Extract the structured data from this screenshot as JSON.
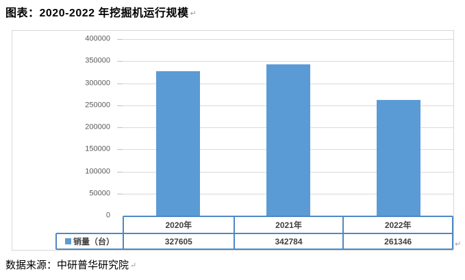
{
  "document": {
    "title": "图表：2020-2022 年挖掘机运行规模",
    "source_note": "数据来源：中研普华研究院",
    "paragraph_mark": "↵"
  },
  "chart_data": {
    "type": "bar",
    "title": "图表：2020-2022 年挖掘机运行规模",
    "categories": [
      "2020年",
      "2021年",
      "2022年"
    ],
    "series": [
      {
        "name": "销量（台）",
        "values": [
          327605,
          342784,
          261346
        ]
      }
    ],
    "xlabel": "",
    "ylabel": "",
    "ylim": [
      0,
      400000
    ],
    "yticks": [
      0,
      50000,
      100000,
      150000,
      200000,
      250000,
      300000,
      350000,
      400000
    ],
    "grid": true,
    "legend_position": "data-table-left",
    "data_table_shown": true,
    "bar_color": "#5b9bd5",
    "gridline_color": "#d9d9d9",
    "axis_label_color": "#595959",
    "table_border_color": "#4e87c5",
    "frame_border_color": "#d6d6d6"
  }
}
